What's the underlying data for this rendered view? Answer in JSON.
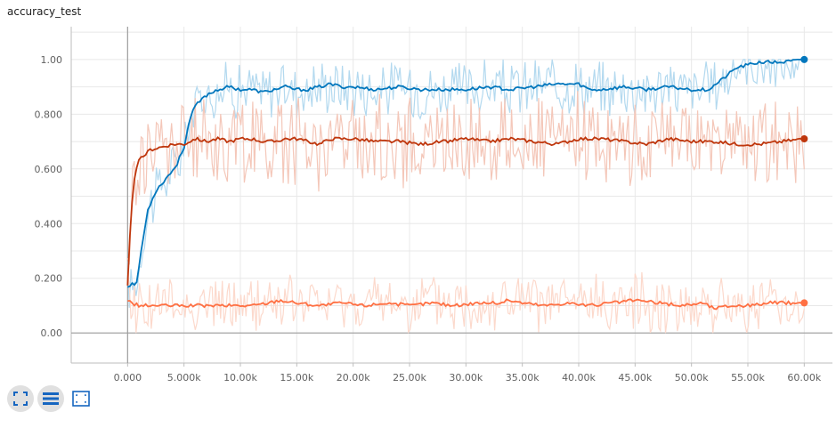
{
  "title": "accuracy_test",
  "chart_data": {
    "type": "line",
    "title": "accuracy_test",
    "xlabel": "",
    "ylabel": "",
    "xlim": [
      -5000,
      62500
    ],
    "ylim": [
      -0.11,
      1.12
    ],
    "grid": true,
    "x_ticks": [
      0,
      5000,
      10000,
      15000,
      20000,
      25000,
      30000,
      35000,
      40000,
      45000,
      50000,
      55000,
      60000
    ],
    "x_tick_labels": [
      "0.000",
      "5.000k",
      "10.00k",
      "15.00k",
      "20.00k",
      "25.00k",
      "30.00k",
      "35.00k",
      "40.00k",
      "45.00k",
      "50.00k",
      "55.00k",
      "60.00k"
    ],
    "y_ticks": [
      0.0,
      0.2,
      0.4,
      0.6,
      0.8,
      1.0
    ],
    "y_tick_labels": [
      "0.00",
      "0.200",
      "0.400",
      "0.600",
      "0.800",
      "1.00"
    ],
    "y_minor_grid": [
      0.1,
      0.3,
      0.5,
      0.7,
      0.9,
      1.1
    ],
    "smoothing_display": "smoothed line over faint raw values",
    "series": [
      {
        "color": "#0277bd",
        "raw_color": "#b3d9ef",
        "smoothed": [
          [
            0,
            0.17
          ],
          [
            300,
            0.18
          ],
          [
            800,
            0.18
          ],
          [
            1200,
            0.3
          ],
          [
            1800,
            0.45
          ],
          [
            2500,
            0.52
          ],
          [
            3500,
            0.57
          ],
          [
            4300,
            0.61
          ],
          [
            5000,
            0.68
          ],
          [
            5500,
            0.78
          ],
          [
            6000,
            0.83
          ],
          [
            7000,
            0.87
          ],
          [
            8000,
            0.89
          ],
          [
            9000,
            0.9
          ],
          [
            10000,
            0.89
          ],
          [
            11000,
            0.89
          ],
          [
            12000,
            0.88
          ],
          [
            13000,
            0.89
          ],
          [
            14000,
            0.9
          ],
          [
            15000,
            0.89
          ],
          [
            16000,
            0.89
          ],
          [
            17000,
            0.9
          ],
          [
            18000,
            0.91
          ],
          [
            19000,
            0.9
          ],
          [
            20000,
            0.9
          ],
          [
            22000,
            0.89
          ],
          [
            24000,
            0.9
          ],
          [
            26000,
            0.89
          ],
          [
            28000,
            0.89
          ],
          [
            30000,
            0.89
          ],
          [
            32000,
            0.9
          ],
          [
            34000,
            0.89
          ],
          [
            36000,
            0.9
          ],
          [
            38000,
            0.91
          ],
          [
            40000,
            0.91
          ],
          [
            41000,
            0.89
          ],
          [
            42000,
            0.89
          ],
          [
            44000,
            0.9
          ],
          [
            46000,
            0.89
          ],
          [
            48000,
            0.9
          ],
          [
            50000,
            0.89
          ],
          [
            51500,
            0.89
          ],
          [
            52500,
            0.92
          ],
          [
            54000,
            0.97
          ],
          [
            56000,
            0.99
          ],
          [
            58000,
            0.99
          ],
          [
            60000,
            1.0
          ]
        ]
      },
      {
        "color": "#bf360c",
        "raw_color": "#f4c7b9",
        "smoothed": [
          [
            0,
            0.17
          ],
          [
            200,
            0.35
          ],
          [
            500,
            0.55
          ],
          [
            1000,
            0.63
          ],
          [
            2000,
            0.67
          ],
          [
            3000,
            0.68
          ],
          [
            4000,
            0.69
          ],
          [
            5000,
            0.69
          ],
          [
            6000,
            0.71
          ],
          [
            7000,
            0.7
          ],
          [
            8000,
            0.71
          ],
          [
            9000,
            0.7
          ],
          [
            10000,
            0.71
          ],
          [
            11000,
            0.71
          ],
          [
            12000,
            0.7
          ],
          [
            13000,
            0.7
          ],
          [
            14000,
            0.71
          ],
          [
            15000,
            0.71
          ],
          [
            16000,
            0.7
          ],
          [
            17000,
            0.69
          ],
          [
            18000,
            0.71
          ],
          [
            20000,
            0.71
          ],
          [
            22000,
            0.7
          ],
          [
            24000,
            0.7
          ],
          [
            26000,
            0.69
          ],
          [
            28000,
            0.7
          ],
          [
            30000,
            0.71
          ],
          [
            32000,
            0.7
          ],
          [
            34000,
            0.71
          ],
          [
            36000,
            0.7
          ],
          [
            38000,
            0.69
          ],
          [
            40000,
            0.71
          ],
          [
            42000,
            0.71
          ],
          [
            44000,
            0.7
          ],
          [
            46000,
            0.69
          ],
          [
            48000,
            0.71
          ],
          [
            50000,
            0.7
          ],
          [
            52000,
            0.7
          ],
          [
            54000,
            0.69
          ],
          [
            56000,
            0.69
          ],
          [
            58000,
            0.7
          ],
          [
            60000,
            0.71
          ]
        ]
      },
      {
        "color": "#ff7043",
        "raw_color": "#fcd9cc",
        "smoothed": [
          [
            0,
            0.12
          ],
          [
            300,
            0.11
          ],
          [
            1000,
            0.1
          ],
          [
            3000,
            0.1
          ],
          [
            5000,
            0.1
          ],
          [
            7000,
            0.1
          ],
          [
            9000,
            0.1
          ],
          [
            11000,
            0.1
          ],
          [
            12500,
            0.11
          ],
          [
            13500,
            0.12
          ],
          [
            15000,
            0.11
          ],
          [
            17000,
            0.1
          ],
          [
            19000,
            0.11
          ],
          [
            21000,
            0.1
          ],
          [
            23000,
            0.11
          ],
          [
            25000,
            0.1
          ],
          [
            27000,
            0.11
          ],
          [
            29000,
            0.1
          ],
          [
            31000,
            0.11
          ],
          [
            33000,
            0.11
          ],
          [
            33800,
            0.12
          ],
          [
            35000,
            0.11
          ],
          [
            37000,
            0.1
          ],
          [
            39000,
            0.11
          ],
          [
            41000,
            0.1
          ],
          [
            43000,
            0.11
          ],
          [
            45000,
            0.12
          ],
          [
            47000,
            0.11
          ],
          [
            49000,
            0.1
          ],
          [
            51000,
            0.11
          ],
          [
            52000,
            0.09
          ],
          [
            53500,
            0.1
          ],
          [
            55000,
            0.1
          ],
          [
            57000,
            0.11
          ],
          [
            59000,
            0.11
          ],
          [
            60000,
            0.11
          ]
        ]
      }
    ]
  },
  "toolbar": {
    "buttons": [
      {
        "icon": "expand-icon"
      },
      {
        "icon": "list-icon"
      },
      {
        "icon": "fit-domain-icon"
      }
    ]
  }
}
